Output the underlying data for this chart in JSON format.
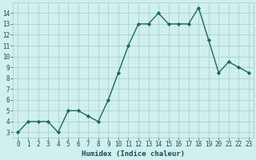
{
  "x": [
    0,
    1,
    2,
    3,
    4,
    5,
    6,
    7,
    8,
    9,
    10,
    11,
    12,
    13,
    14,
    15,
    16,
    17,
    18,
    19,
    20,
    21,
    22,
    23
  ],
  "y": [
    3,
    4,
    4,
    4,
    3,
    5,
    5,
    4.5,
    4,
    6,
    8.5,
    11,
    13,
    13,
    14,
    13,
    13,
    13,
    14.5,
    11.5,
    8.5,
    9.5,
    9,
    8.5
  ],
  "xlabel": "Humidex (Indice chaleur)",
  "xlim": [
    -0.5,
    23.5
  ],
  "ylim": [
    2.5,
    15.0
  ],
  "yticks": [
    3,
    4,
    5,
    6,
    7,
    8,
    9,
    10,
    11,
    12,
    13,
    14
  ],
  "xticks": [
    0,
    1,
    2,
    3,
    4,
    5,
    6,
    7,
    8,
    9,
    10,
    11,
    12,
    13,
    14,
    15,
    16,
    17,
    18,
    19,
    20,
    21,
    22,
    23
  ],
  "line_color": "#1a6b5a",
  "marker": "D",
  "marker_size": 2.2,
  "bg_color": "#d0f0ee",
  "grid_color": "#a8c8c4",
  "xlabel_color": "#1a4a5a",
  "tick_label_color": "#1a4a5a",
  "line_width": 1.0,
  "tick_fontsize": 5.5,
  "xlabel_fontsize": 6.5
}
